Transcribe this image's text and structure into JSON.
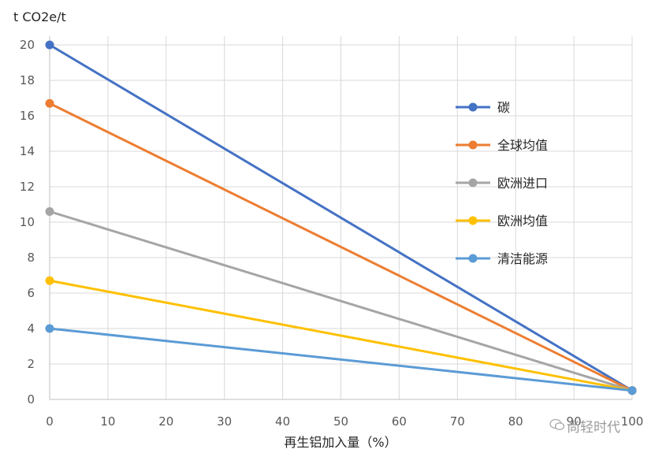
{
  "chart_data": {
    "type": "line",
    "ylabel": "t CO2e/t",
    "xlabel": "再生铝加入量（%）",
    "xlim": [
      0,
      100
    ],
    "ylim": [
      0,
      20
    ],
    "x_ticks": [
      "0",
      "10",
      "20",
      "30",
      "40",
      "50",
      "60",
      "70",
      "80",
      "90",
      "100"
    ],
    "y_ticks": [
      "0",
      "2",
      "4",
      "6",
      "8",
      "10",
      "12",
      "14",
      "16",
      "18",
      "20"
    ],
    "grid": true,
    "legend_position": "right",
    "series": [
      {
        "name": "碳",
        "color": "#4472c4",
        "points": [
          [
            0,
            20.0
          ],
          [
            100,
            0.5
          ]
        ]
      },
      {
        "name": "全球均值",
        "color": "#ed7d31",
        "points": [
          [
            0,
            16.7
          ],
          [
            100,
            0.5
          ]
        ]
      },
      {
        "name": "欧洲进口",
        "color": "#a5a5a5",
        "points": [
          [
            0,
            10.6
          ],
          [
            100,
            0.5
          ]
        ]
      },
      {
        "name": "欧洲均值",
        "color": "#ffc000",
        "points": [
          [
            0,
            6.7
          ],
          [
            100,
            0.5
          ]
        ]
      },
      {
        "name": "清洁能源",
        "color": "#5b9bd5",
        "points": [
          [
            0,
            4.0
          ],
          [
            100,
            0.5
          ]
        ]
      }
    ]
  },
  "watermark": {
    "text": "尚轻时代",
    "icon": "wechat-icon"
  }
}
